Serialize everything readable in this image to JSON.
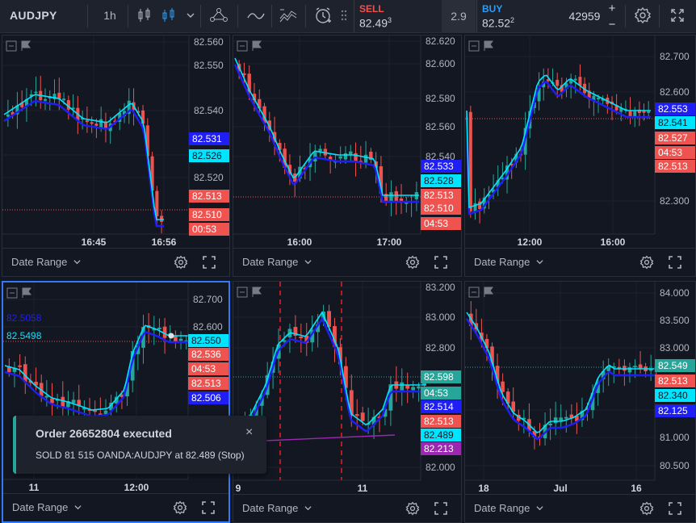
{
  "toolbar": {
    "symbol": "AUDJPY",
    "interval": "1h",
    "sell": {
      "label": "SELL",
      "price": "82.49",
      "pip": "3"
    },
    "spread": "2.9",
    "buy": {
      "label": "BUY",
      "price": "82.52",
      "pip": "2"
    },
    "quantity": "42959",
    "plus": "+",
    "minus": "−"
  },
  "colors": {
    "up": "#26a69a",
    "down": "#ef5350",
    "sma_fast": "#00e5ff",
    "sma_slow": "#1f1ff5",
    "purple": "#9c27b0",
    "bg": "#131722"
  },
  "panels": [
    {
      "id": "p1",
      "date_range": "Date Range",
      "chart_data": {
        "type": "candlestick",
        "x_ticks": [
          "16:45",
          "16:56"
        ],
        "y_ticks": [
          "82.560",
          "82.550",
          "82.540",
          "82.530",
          "82.520"
        ],
        "tags": [
          {
            "text": "82.531",
            "color": "#1f1ff5"
          },
          {
            "text": "82.526",
            "color": "#00e5ff"
          },
          {
            "text": "82.513",
            "color": "#ef5350"
          },
          {
            "text": "82.510",
            "color": "#ef5350"
          },
          {
            "text": "00:53",
            "color": "#ef5350"
          }
        ]
      }
    },
    {
      "id": "p2",
      "date_range": "Date Range",
      "chart_data": {
        "type": "candlestick",
        "x_ticks": [
          "16:00",
          "17:00"
        ],
        "y_ticks": [
          "82.620",
          "82.600",
          "82.580",
          "82.560",
          "82.540"
        ],
        "tags": [
          {
            "text": "82.533",
            "color": "#1f1ff5"
          },
          {
            "text": "82.528",
            "color": "#00e5ff"
          },
          {
            "text": "82.513",
            "color": "#ef5350"
          },
          {
            "text": "82.510",
            "color": "#ef5350"
          },
          {
            "text": "04:53",
            "color": "#ef5350"
          }
        ]
      }
    },
    {
      "id": "p3",
      "date_range": "Date Range",
      "chart_data": {
        "type": "candlestick",
        "x_ticks": [
          "12:00",
          "16:00"
        ],
        "y_ticks": [
          "82.700",
          "82.600",
          "82.300"
        ],
        "tags": [
          {
            "text": "82.553",
            "color": "#1f1ff5"
          },
          {
            "text": "82.541",
            "color": "#00e5ff"
          },
          {
            "text": "82.527",
            "color": "#ef5350"
          },
          {
            "text": "04:53",
            "color": "#ef5350"
          },
          {
            "text": "82.513",
            "color": "#ef5350"
          }
        ]
      }
    },
    {
      "id": "p4",
      "date_range": "Date Range",
      "chart_data": {
        "type": "candlestick",
        "x_ticks": [
          "11",
          "12:00"
        ],
        "y_ticks": [
          "82.700",
          "82.600"
        ],
        "legend": [
          "82.5058",
          "82.5498"
        ],
        "tags": [
          {
            "text": "82.550",
            "color": "#00e5ff"
          },
          {
            "text": "82.536",
            "color": "#ef5350"
          },
          {
            "text": "04:53",
            "color": "#ef5350"
          },
          {
            "text": "82.513",
            "color": "#ef5350"
          },
          {
            "text": "82.506",
            "color": "#1f1ff5"
          }
        ]
      }
    },
    {
      "id": "p5",
      "date_range": "Date Range",
      "chart_data": {
        "type": "candlestick",
        "x_ticks": [
          "9",
          "11"
        ],
        "y_ticks": [
          "83.200",
          "83.000",
          "82.800",
          "82.000"
        ],
        "tags": [
          {
            "text": "82.598",
            "color": "#26a69a"
          },
          {
            "text": "04:53",
            "color": "#26a69a"
          },
          {
            "text": "82.514",
            "color": "#1f1ff5"
          },
          {
            "text": "82.513",
            "color": "#ef5350"
          },
          {
            "text": "82.489",
            "color": "#00e5ff"
          },
          {
            "text": "82.213",
            "color": "#9c27b0"
          }
        ]
      }
    },
    {
      "id": "p6",
      "date_range": "Date Range",
      "chart_data": {
        "type": "candlestick",
        "x_ticks": [
          "18",
          "Jul",
          "16"
        ],
        "y_ticks": [
          "84.000",
          "83.500",
          "83.000",
          "81.500",
          "81.000",
          "80.500"
        ],
        "tags": [
          {
            "text": "82.549",
            "color": "#26a69a"
          },
          {
            "text": "82.513",
            "color": "#ef5350"
          },
          {
            "text": "82.340",
            "color": "#00e5ff"
          },
          {
            "text": "82.125",
            "color": "#1f1ff5"
          }
        ]
      }
    }
  ],
  "toast": {
    "title": "Order 26652804 executed",
    "message": "SOLD 81 515 OANDA:AUDJPY at 82.489 (Stop)",
    "close": "×"
  }
}
